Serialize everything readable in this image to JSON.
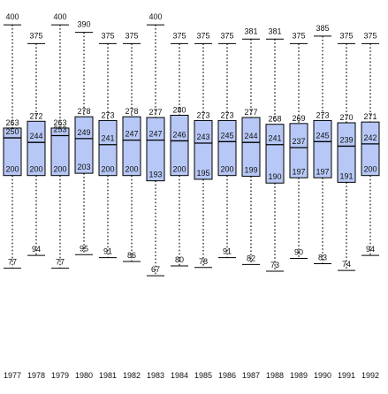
{
  "chart_data": {
    "type": "boxplot",
    "title": "",
    "xlabel": "",
    "ylabel": "",
    "grid": false,
    "box_color": "#b7c8f6",
    "categories": [
      "1977",
      "1978",
      "1979",
      "1980",
      "1981",
      "1982",
      "1983",
      "1984",
      "1985",
      "1986",
      "1987",
      "1988",
      "1989",
      "1990",
      "1991",
      "1992"
    ],
    "boxes": [
      {
        "label": "1977",
        "min": 77,
        "q1": 200,
        "median": 250,
        "q3": 263,
        "max": 400
      },
      {
        "label": "1978",
        "min": 94,
        "q1": 200,
        "median": 244,
        "q3": 272,
        "max": 375
      },
      {
        "label": "1979",
        "min": 77,
        "q1": 200,
        "median": 253,
        "q3": 263,
        "max": 400
      },
      {
        "label": "1980",
        "min": 95,
        "q1": 203,
        "median": 249,
        "q3": 278,
        "max": 390
      },
      {
        "label": "1981",
        "min": 91,
        "q1": 200,
        "median": 241,
        "q3": 273,
        "max": 375
      },
      {
        "label": "1982",
        "min": 86,
        "q1": 200,
        "median": 247,
        "q3": 278,
        "max": 375
      },
      {
        "label": "1983",
        "min": 67,
        "q1": 193,
        "median": 247,
        "q3": 277,
        "max": 400
      },
      {
        "label": "1984",
        "min": 80,
        "q1": 200,
        "median": 246,
        "q3": 280,
        "max": 375
      },
      {
        "label": "1985",
        "min": 78,
        "q1": 195,
        "median": 243,
        "q3": 273,
        "max": 375
      },
      {
        "label": "1986",
        "min": 91,
        "q1": 200,
        "median": 245,
        "q3": 273,
        "max": 375
      },
      {
        "label": "1987",
        "min": 82,
        "q1": 199,
        "median": 244,
        "q3": 277,
        "max": 381
      },
      {
        "label": "1988",
        "min": 73,
        "q1": 190,
        "median": 241,
        "q3": 268,
        "max": 381
      },
      {
        "label": "1989",
        "min": 90,
        "q1": 197,
        "median": 237,
        "q3": 269,
        "max": 375
      },
      {
        "label": "1990",
        "min": 83,
        "q1": 197,
        "median": 245,
        "q3": 273,
        "max": 385
      },
      {
        "label": "1991",
        "min": 74,
        "q1": 191,
        "median": 239,
        "q3": 270,
        "max": 375
      },
      {
        "label": "1992",
        "min": 94,
        "q1": 200,
        "median": 242,
        "q3": 271,
        "max": 375
      }
    ]
  }
}
